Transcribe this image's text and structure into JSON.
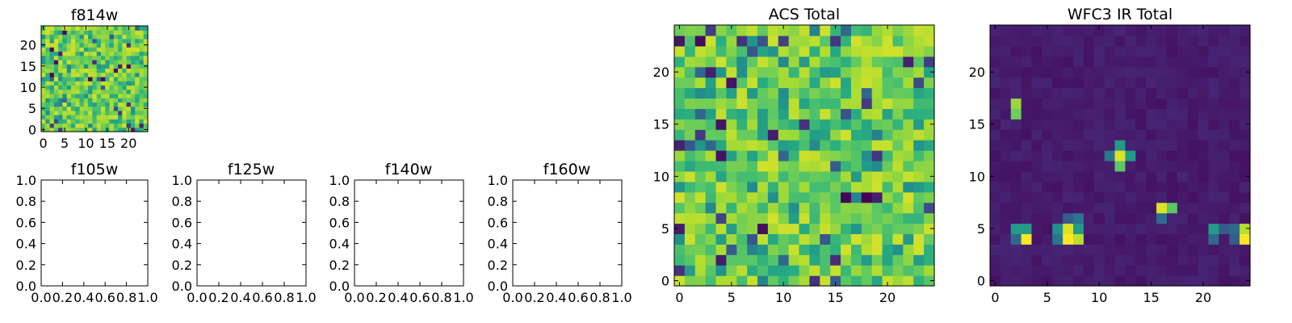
{
  "chart_data": [
    {
      "type": "heatmap",
      "title": "f814w",
      "xlim": [
        -0.5,
        24.5
      ],
      "ylim": [
        -0.5,
        24.5
      ],
      "xticks": [
        0,
        5,
        10,
        15,
        20
      ],
      "yticks": [
        0,
        5,
        10,
        15,
        20
      ],
      "grid_size": 25,
      "colormap": "viridis",
      "pattern": "noise",
      "grid": false
    },
    {
      "type": "empty",
      "title": "f105w",
      "xlim": [
        0,
        1
      ],
      "ylim": [
        0,
        1
      ],
      "xticks": [
        "0.0",
        "0.2",
        "0.4",
        "0.6",
        "0.8",
        "1.0"
      ],
      "yticks": [
        "0.0",
        "0.2",
        "0.4",
        "0.6",
        "0.8",
        "1.0"
      ]
    },
    {
      "type": "empty",
      "title": "f125w",
      "xlim": [
        0,
        1
      ],
      "ylim": [
        0,
        1
      ],
      "xticks": [
        "0.0",
        "0.2",
        "0.4",
        "0.6",
        "0.8",
        "1.0"
      ],
      "yticks": [
        "0.0",
        "0.2",
        "0.4",
        "0.6",
        "0.8",
        "1.0"
      ]
    },
    {
      "type": "empty",
      "title": "f140w",
      "xlim": [
        0,
        1
      ],
      "ylim": [
        0,
        1
      ],
      "xticks": [
        "0.0",
        "0.2",
        "0.4",
        "0.6",
        "0.8",
        "1.0"
      ],
      "yticks": [
        "0.0",
        "0.2",
        "0.4",
        "0.6",
        "0.8",
        "1.0"
      ]
    },
    {
      "type": "empty",
      "title": "f160w",
      "xlim": [
        0,
        1
      ],
      "ylim": [
        0,
        1
      ],
      "xticks": [
        "0.0",
        "0.2",
        "0.4",
        "0.6",
        "0.8",
        "1.0"
      ],
      "yticks": [
        "0.0",
        "0.2",
        "0.4",
        "0.6",
        "0.8",
        "1.0"
      ]
    },
    {
      "type": "heatmap",
      "title": "ACS Total",
      "xlim": [
        -0.5,
        24.5
      ],
      "ylim": [
        -0.5,
        24.5
      ],
      "xticks": [
        0,
        5,
        10,
        15,
        20
      ],
      "yticks": [
        0,
        5,
        10,
        15,
        20
      ],
      "grid_size": 25,
      "colormap": "viridis",
      "pattern": "noise",
      "grid": false
    },
    {
      "type": "heatmap",
      "title": "WFC3 IR Total",
      "xlim": [
        -0.5,
        24.5
      ],
      "ylim": [
        -0.5,
        24.5
      ],
      "xticks": [
        0,
        5,
        10,
        15,
        20
      ],
      "yticks": [
        0,
        5,
        10,
        15,
        20
      ],
      "grid_size": 25,
      "colormap": "viridis",
      "pattern": "sources",
      "background_level": 0.05,
      "grid": false,
      "bright_pixels": [
        {
          "x": 2,
          "y": 17,
          "v": 0.85
        },
        {
          "x": 2,
          "y": 16,
          "v": 0.78
        },
        {
          "x": 2,
          "y": 5,
          "v": 0.55
        },
        {
          "x": 3,
          "y": 5,
          "v": 0.55
        },
        {
          "x": 2,
          "y": 4,
          "v": 0.35
        },
        {
          "x": 3,
          "y": 4,
          "v": 1.0
        },
        {
          "x": 7,
          "y": 6,
          "v": 0.3
        },
        {
          "x": 8,
          "y": 6,
          "v": 0.4
        },
        {
          "x": 6,
          "y": 5,
          "v": 0.5
        },
        {
          "x": 7,
          "y": 5,
          "v": 0.95
        },
        {
          "x": 8,
          "y": 5,
          "v": 0.55
        },
        {
          "x": 6,
          "y": 4,
          "v": 0.4
        },
        {
          "x": 7,
          "y": 4,
          "v": 1.0
        },
        {
          "x": 8,
          "y": 4,
          "v": 0.9
        },
        {
          "x": 12,
          "y": 13,
          "v": 0.55
        },
        {
          "x": 11,
          "y": 12,
          "v": 0.4
        },
        {
          "x": 12,
          "y": 12,
          "v": 0.95
        },
        {
          "x": 13,
          "y": 12,
          "v": 0.55
        },
        {
          "x": 12,
          "y": 11,
          "v": 0.75
        },
        {
          "x": 16,
          "y": 7,
          "v": 0.95
        },
        {
          "x": 17,
          "y": 7,
          "v": 0.75
        },
        {
          "x": 16,
          "y": 6,
          "v": 0.35
        },
        {
          "x": 21,
          "y": 5,
          "v": 0.55
        },
        {
          "x": 22,
          "y": 5,
          "v": 0.3
        },
        {
          "x": 23,
          "y": 5,
          "v": 0.35
        },
        {
          "x": 24,
          "y": 5,
          "v": 0.9
        },
        {
          "x": 21,
          "y": 4,
          "v": 0.35
        },
        {
          "x": 23,
          "y": 4,
          "v": 0.3
        },
        {
          "x": 24,
          "y": 4,
          "v": 1.0
        }
      ]
    }
  ]
}
